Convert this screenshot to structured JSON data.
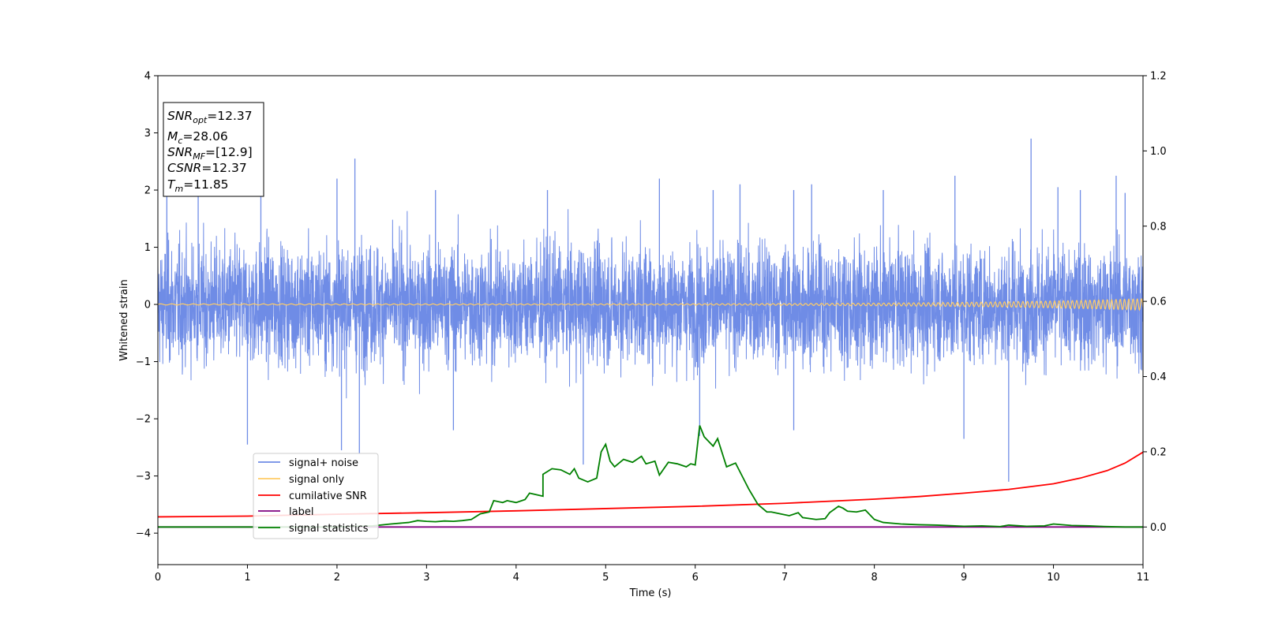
{
  "chart_data": {
    "type": "line",
    "xlabel": "Time (s)",
    "ylabel": "Whitened strain",
    "xlim": [
      0,
      11
    ],
    "ylim_left": [
      -4.55,
      4
    ],
    "ylim_right": [
      -0.1,
      1.2
    ],
    "xticks": [
      "0",
      "1",
      "2",
      "3",
      "4",
      "5",
      "6",
      "7",
      "8",
      "9",
      "10",
      "11"
    ],
    "yticks_left": [
      "4",
      "3",
      "2",
      "1",
      "0",
      "−1",
      "−2",
      "−3",
      "−4"
    ],
    "yticks_left_values": [
      4,
      3,
      2,
      1,
      0,
      -1,
      -2,
      -3,
      -4
    ],
    "yticks_right": [
      "1.2",
      "1.0",
      "0.8",
      "0.6",
      "0.4",
      "0.2",
      "0.0"
    ],
    "yticks_right_values": [
      1.2,
      1.0,
      0.8,
      0.6,
      0.4,
      0.2,
      0.0
    ],
    "grid": false,
    "legend_placement": "lower-left",
    "info_box": {
      "lines": [
        {
          "main": "SNR",
          "sub": "opt",
          "value": "=12.37"
        },
        {
          "main": "M",
          "sub": "c",
          "value": "=28.06"
        },
        {
          "main": "SNR",
          "sub": "MF",
          "value": "=[12.9]"
        },
        {
          "main": "CSNR",
          "sub": "",
          "value": "=12.37"
        },
        {
          "main": "T",
          "sub": "m",
          "value": "=11.85"
        }
      ]
    },
    "series": [
      {
        "name": "signal+ noise",
        "color": "#6f8ce6",
        "axis": "left",
        "style": "noise",
        "x_range": [
          0,
          11
        ],
        "envelope_typical": [
          -1.3,
          1.3
        ],
        "spikes": [
          [
            0.1,
            2.0
          ],
          [
            0.45,
            2.0
          ],
          [
            1.0,
            -2.45
          ],
          [
            1.15,
            2.0
          ],
          [
            2.0,
            2.2
          ],
          [
            2.2,
            2.55
          ],
          [
            2.05,
            -2.55
          ],
          [
            2.25,
            -2.6
          ],
          [
            3.1,
            2.0
          ],
          [
            3.3,
            -2.2
          ],
          [
            4.35,
            2.0
          ],
          [
            4.75,
            -2.8
          ],
          [
            5.6,
            2.2
          ],
          [
            6.05,
            -2.3
          ],
          [
            6.2,
            2.0
          ],
          [
            6.5,
            2.1
          ],
          [
            7.1,
            2.0
          ],
          [
            7.1,
            -2.2
          ],
          [
            7.3,
            2.1
          ],
          [
            8.1,
            2.0
          ],
          [
            8.9,
            2.25
          ],
          [
            9.0,
            -2.35
          ],
          [
            9.5,
            -3.1
          ],
          [
            9.75,
            2.9
          ],
          [
            10.05,
            2.05
          ],
          [
            10.3,
            2.0
          ],
          [
            10.7,
            2.25
          ],
          [
            10.8,
            1.95
          ]
        ]
      },
      {
        "name": "signal only",
        "color": "#ffcc66",
        "axis": "left",
        "style": "chirp",
        "x_range": [
          0,
          11
        ],
        "amplitude_start": 0.01,
        "amplitude_end": 0.1
      },
      {
        "name": "cumilative SNR",
        "color": "#ff0000",
        "axis": "right",
        "points": [
          [
            0,
            0.027
          ],
          [
            1,
            0.029
          ],
          [
            2,
            0.034
          ],
          [
            3,
            0.038
          ],
          [
            4,
            0.043
          ],
          [
            5,
            0.049
          ],
          [
            6,
            0.055
          ],
          [
            7,
            0.063
          ],
          [
            8,
            0.074
          ],
          [
            8.5,
            0.081
          ],
          [
            9,
            0.09
          ],
          [
            9.5,
            0.1
          ],
          [
            10,
            0.115
          ],
          [
            10.3,
            0.13
          ],
          [
            10.6,
            0.15
          ],
          [
            10.8,
            0.17
          ],
          [
            11,
            0.199
          ]
        ]
      },
      {
        "name": "label",
        "color": "#800080",
        "axis": "right",
        "points": [
          [
            0,
            0.0
          ],
          [
            11,
            0.0
          ]
        ]
      },
      {
        "name": "signal statistics",
        "color": "#008000",
        "axis": "right",
        "points": [
          [
            0,
            0.0
          ],
          [
            2.0,
            0.0
          ],
          [
            2.4,
            0.003
          ],
          [
            2.6,
            0.008
          ],
          [
            2.8,
            0.012
          ],
          [
            2.9,
            0.017
          ],
          [
            3.0,
            0.015
          ],
          [
            3.1,
            0.014
          ],
          [
            3.2,
            0.016
          ],
          [
            3.3,
            0.015
          ],
          [
            3.4,
            0.017
          ],
          [
            3.5,
            0.02
          ],
          [
            3.6,
            0.035
          ],
          [
            3.7,
            0.04
          ],
          [
            3.75,
            0.07
          ],
          [
            3.85,
            0.065
          ],
          [
            3.9,
            0.07
          ],
          [
            4.0,
            0.065
          ],
          [
            4.1,
            0.073
          ],
          [
            4.15,
            0.09
          ],
          [
            4.3,
            0.082
          ],
          [
            4.3,
            0.14
          ],
          [
            4.4,
            0.155
          ],
          [
            4.5,
            0.152
          ],
          [
            4.6,
            0.14
          ],
          [
            4.65,
            0.155
          ],
          [
            4.7,
            0.13
          ],
          [
            4.8,
            0.12
          ],
          [
            4.9,
            0.13
          ],
          [
            4.95,
            0.2
          ],
          [
            5.0,
            0.22
          ],
          [
            5.05,
            0.175
          ],
          [
            5.1,
            0.16
          ],
          [
            5.2,
            0.18
          ],
          [
            5.3,
            0.172
          ],
          [
            5.4,
            0.188
          ],
          [
            5.45,
            0.168
          ],
          [
            5.55,
            0.175
          ],
          [
            5.6,
            0.138
          ],
          [
            5.7,
            0.172
          ],
          [
            5.8,
            0.168
          ],
          [
            5.9,
            0.16
          ],
          [
            5.95,
            0.168
          ],
          [
            6.0,
            0.165
          ],
          [
            6.05,
            0.27
          ],
          [
            6.1,
            0.24
          ],
          [
            6.2,
            0.215
          ],
          [
            6.25,
            0.235
          ],
          [
            6.35,
            0.16
          ],
          [
            6.45,
            0.17
          ],
          [
            6.6,
            0.1
          ],
          [
            6.7,
            0.06
          ],
          [
            6.8,
            0.04
          ],
          [
            6.85,
            0.04
          ],
          [
            6.95,
            0.035
          ],
          [
            7.05,
            0.03
          ],
          [
            7.15,
            0.038
          ],
          [
            7.2,
            0.025
          ],
          [
            7.35,
            0.02
          ],
          [
            7.45,
            0.022
          ],
          [
            7.5,
            0.038
          ],
          [
            7.6,
            0.055
          ],
          [
            7.65,
            0.05
          ],
          [
            7.7,
            0.042
          ],
          [
            7.8,
            0.04
          ],
          [
            7.9,
            0.045
          ],
          [
            8.0,
            0.02
          ],
          [
            8.1,
            0.012
          ],
          [
            8.3,
            0.008
          ],
          [
            8.5,
            0.006
          ],
          [
            8.7,
            0.005
          ],
          [
            8.9,
            0.003
          ],
          [
            9.0,
            0.002
          ],
          [
            9.2,
            0.003
          ],
          [
            9.4,
            0.001
          ],
          [
            9.5,
            0.005
          ],
          [
            9.7,
            0.002
          ],
          [
            9.9,
            0.003
          ],
          [
            10.0,
            0.008
          ],
          [
            10.2,
            0.004
          ],
          [
            10.4,
            0.003
          ],
          [
            10.5,
            0.002
          ],
          [
            10.6,
            0.001
          ],
          [
            10.8,
            0.0
          ],
          [
            11.0,
            0.0
          ]
        ]
      }
    ]
  }
}
